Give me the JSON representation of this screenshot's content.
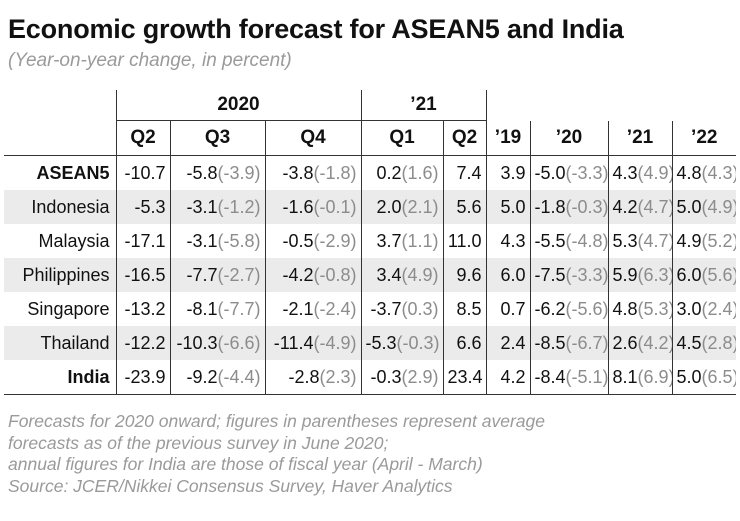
{
  "title": "Economic growth forecast for ASEAN5 and India",
  "subtitle": "(Year-on-year change, in percent)",
  "header": {
    "group_2020": "2020",
    "group_21": "’21",
    "columns": [
      "Q2",
      "Q3",
      "Q4",
      "Q1",
      "Q2",
      "’19",
      "’20",
      "’21",
      "’22"
    ]
  },
  "rows": [
    {
      "name": "ASEAN5",
      "bold": true,
      "cells": [
        [
          "-10.7",
          ""
        ],
        [
          "-5.8",
          "(-3.9)"
        ],
        [
          "-3.8",
          "(-1.8)"
        ],
        [
          "0.2",
          "(1.6)"
        ],
        [
          "7.4",
          ""
        ],
        [
          "3.9",
          ""
        ],
        [
          "-5.0",
          "(-3.3)"
        ],
        [
          "4.3",
          "(4.9)"
        ],
        [
          "4.8",
          "(4.3)"
        ]
      ]
    },
    {
      "name": "Indonesia",
      "bold": false,
      "cells": [
        [
          "-5.3",
          ""
        ],
        [
          "-3.1",
          "(-1.2)"
        ],
        [
          "-1.6",
          "(-0.1)"
        ],
        [
          "2.0",
          "(2.1)"
        ],
        [
          "5.6",
          ""
        ],
        [
          "5.0",
          ""
        ],
        [
          "-1.8",
          "(-0.3)"
        ],
        [
          "4.2",
          "(4.7)"
        ],
        [
          "5.0",
          "(4.9)"
        ]
      ]
    },
    {
      "name": "Malaysia",
      "bold": false,
      "cells": [
        [
          "-17.1",
          ""
        ],
        [
          "-3.1",
          "(-5.8)"
        ],
        [
          "-0.5",
          "(-2.9)"
        ],
        [
          "3.7",
          "(1.1)"
        ],
        [
          "11.0",
          ""
        ],
        [
          "4.3",
          ""
        ],
        [
          "-5.5",
          "(-4.8)"
        ],
        [
          "5.3",
          "(4.7)"
        ],
        [
          "4.9",
          "(5.2)"
        ]
      ]
    },
    {
      "name": "Philippines",
      "bold": false,
      "cells": [
        [
          "-16.5",
          ""
        ],
        [
          "-7.7",
          "(-2.7)"
        ],
        [
          "-4.2",
          "(-0.8)"
        ],
        [
          "3.4",
          "(4.9)"
        ],
        [
          "9.6",
          ""
        ],
        [
          "6.0",
          ""
        ],
        [
          "-7.5",
          "(-3.3)"
        ],
        [
          "5.9",
          "(6.3)"
        ],
        [
          "6.0",
          "(5.6)"
        ]
      ]
    },
    {
      "name": "Singapore",
      "bold": false,
      "cells": [
        [
          "-13.2",
          ""
        ],
        [
          "-8.1",
          "(-7.7)"
        ],
        [
          "-2.1",
          "(-2.4)"
        ],
        [
          "-3.7",
          "(0.3)"
        ],
        [
          "8.5",
          ""
        ],
        [
          "0.7",
          ""
        ],
        [
          "-6.2",
          "(-5.6)"
        ],
        [
          "4.8",
          "(5.3)"
        ],
        [
          "3.0",
          "(2.4)"
        ]
      ]
    },
    {
      "name": "Thailand",
      "bold": false,
      "cells": [
        [
          "-12.2",
          ""
        ],
        [
          "-10.3",
          "(-6.6)"
        ],
        [
          "-11.4",
          "(-4.9)"
        ],
        [
          "-5.3",
          "(-0.3)"
        ],
        [
          "6.6",
          ""
        ],
        [
          "2.4",
          ""
        ],
        [
          "-8.5",
          "(-6.7)"
        ],
        [
          "2.6",
          "(4.2)"
        ],
        [
          "4.5",
          "(2.8)"
        ]
      ]
    },
    {
      "name": "India",
      "bold": true,
      "cells": [
        [
          "-23.9",
          ""
        ],
        [
          "-9.2",
          "(-4.4)"
        ],
        [
          "-2.8",
          "(2.3)"
        ],
        [
          "-0.3",
          "(2.9)"
        ],
        [
          "23.4",
          ""
        ],
        [
          "4.2",
          ""
        ],
        [
          "-8.4",
          "(-5.1)"
        ],
        [
          "8.1",
          "(6.9)"
        ],
        [
          "5.0",
          "(6.5)"
        ]
      ]
    }
  ],
  "footer": [
    "Forecasts for 2020 onward; figures in parentheses represent average",
    "forecasts as of the previous survey in June 2020;",
    "annual figures for India are those of fiscal year (April - March)",
    "Source: JCER/Nikkei Consensus Survey, Haver Analytics"
  ]
}
